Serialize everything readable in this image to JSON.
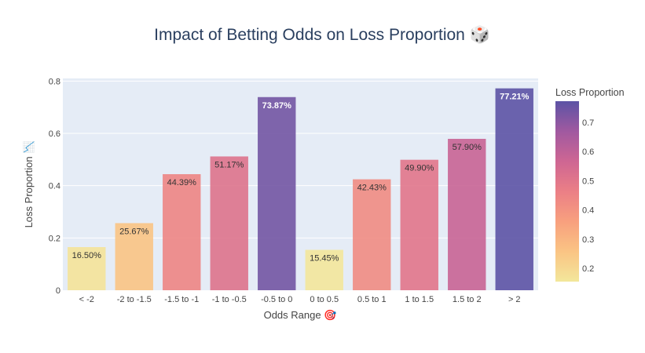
{
  "chart_data": {
    "type": "bar",
    "title": "Impact of Betting Odds on Loss Proportion 🎲",
    "xlabel": "Odds Range 🎯",
    "ylabel": "Loss Proportion 📉",
    "categories": [
      "< -2",
      "-2 to -1.5",
      "-1.5 to -1",
      "-1 to -0.5",
      "-0.5 to 0",
      "0 to 0.5",
      "0.5 to 1",
      "1 to 1.5",
      "1.5 to 2",
      "> 2"
    ],
    "values": [
      0.165,
      0.2567,
      0.4439,
      0.5117,
      0.7387,
      0.1545,
      0.4243,
      0.499,
      0.579,
      0.7721
    ],
    "data_labels": [
      "16.50%",
      "25.67%",
      "44.39%",
      "51.17%",
      "73.87%",
      "15.45%",
      "42.43%",
      "49.90%",
      "57.90%",
      "77.21%"
    ],
    "ylim": [
      0,
      0.81
    ],
    "yticks": [
      0,
      0.2,
      0.4,
      0.6,
      0.8
    ],
    "ytick_labels": [
      "0",
      "0.2",
      "0.4",
      "0.6",
      "0.8"
    ],
    "grid": true,
    "colorbar": {
      "title": "Loss Proportion",
      "range": [
        0.1545,
        0.7721
      ],
      "ticks": [
        0.2,
        0.3,
        0.4,
        0.5,
        0.6,
        0.7
      ],
      "tick_labels": [
        "0.2",
        "0.3",
        "0.4",
        "0.5",
        "0.6",
        "0.7"
      ],
      "colorscale": [
        "#f3e79b",
        "#fac484",
        "#f8a07e",
        "#eb7f86",
        "#ce6693",
        "#a059a0",
        "#5c53a5"
      ]
    },
    "plot_background": "#e5ecf6",
    "bar_opacity": 0.9
  }
}
